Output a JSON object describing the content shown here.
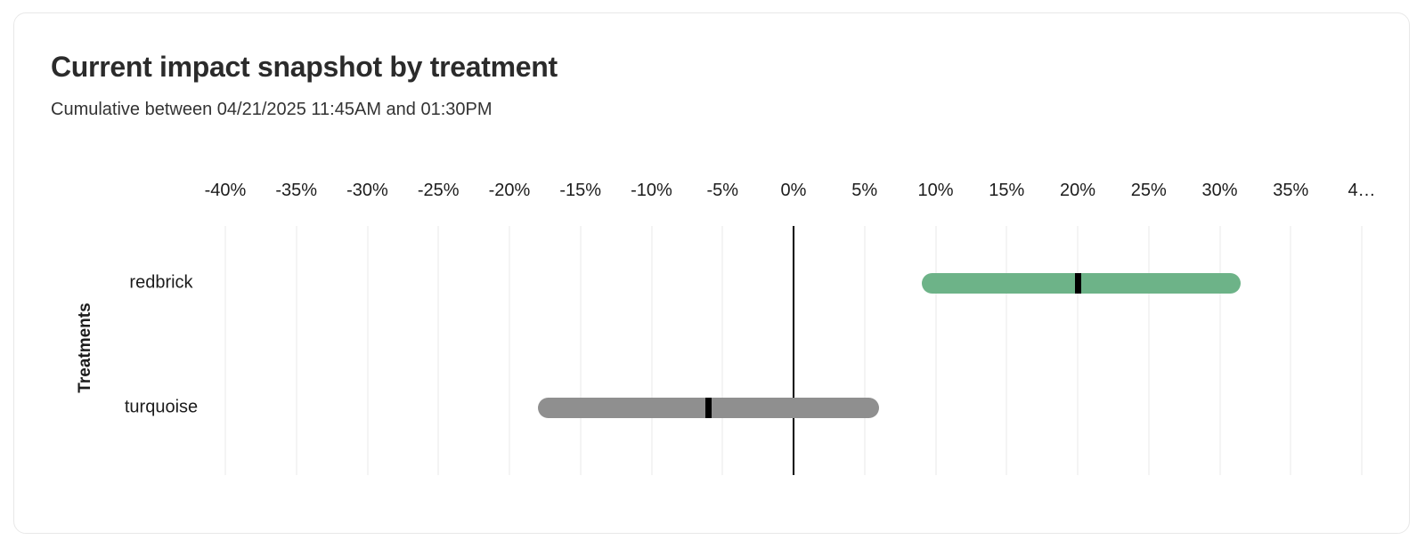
{
  "chart_data": {
    "type": "bar",
    "subtype": "horizontal-range-bar-with-point-marker",
    "title": "Current impact snapshot by treatment",
    "subtitle": "Cumulative between 04/21/2025 11:45AM and 01:30PM",
    "xlabel": "",
    "ylabel": "Treatments",
    "x_unit": "%",
    "xlim": [
      -40,
      40
    ],
    "x_tick_step": 5,
    "grid": true,
    "zero_line": true,
    "legend": "none",
    "categories": [
      "redbrick",
      "turquoise"
    ],
    "series": [
      {
        "name": "redbrick",
        "range_percent": [
          9,
          31.5
        ],
        "point_percent": 20,
        "bar_color": "#6db388",
        "marker_color": "#000000"
      },
      {
        "name": "turquoise",
        "range_percent": [
          -18,
          6
        ],
        "point_percent": -6,
        "bar_color": "#8f8f8f",
        "marker_color": "#000000"
      }
    ],
    "x_ticks": [
      {
        "value": -40,
        "label": "-40%"
      },
      {
        "value": -35,
        "label": "-35%"
      },
      {
        "value": -30,
        "label": "-30%"
      },
      {
        "value": -25,
        "label": "-25%"
      },
      {
        "value": -20,
        "label": "-20%"
      },
      {
        "value": -15,
        "label": "-15%"
      },
      {
        "value": -10,
        "label": "-10%"
      },
      {
        "value": -5,
        "label": "-5%"
      },
      {
        "value": 0,
        "label": "0%"
      },
      {
        "value": 5,
        "label": "5%"
      },
      {
        "value": 10,
        "label": "10%"
      },
      {
        "value": 15,
        "label": "15%"
      },
      {
        "value": 20,
        "label": "20%"
      },
      {
        "value": 25,
        "label": "25%"
      },
      {
        "value": 30,
        "label": "30%"
      },
      {
        "value": 35,
        "label": "35%"
      },
      {
        "value": 40,
        "label": "4…"
      }
    ],
    "colors": {
      "grid_line": "#e8e8e8",
      "zero_line": "#000000",
      "axis_text": "#1c1c1c",
      "title_text": "#2b2b2b",
      "subtitle_text": "#333333",
      "card_border": "#e8e8e8",
      "background": "#ffffff"
    }
  }
}
